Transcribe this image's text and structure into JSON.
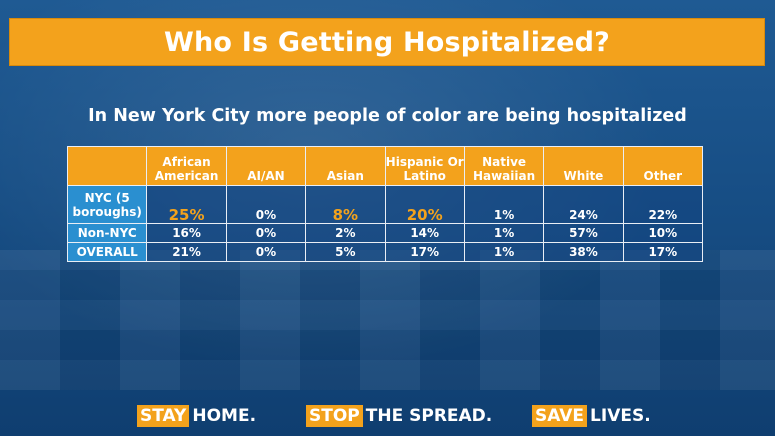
{
  "title": "Who Is Getting Hospitalized?",
  "subtitle": "In New York City more people of color are being hospitalized",
  "chart_data": {
    "type": "table",
    "columns": [
      "African American",
      "AI/AN",
      "Asian",
      "Hispanic Or Latino",
      "Native Hawaiian",
      "White",
      "Other"
    ],
    "rows": [
      {
        "label": "NYC (5 boroughs)",
        "values": [
          "25%",
          "0%",
          "8%",
          "20%",
          "1%",
          "24%",
          "22%"
        ]
      },
      {
        "label": "Non-NYC",
        "values": [
          "16%",
          "0%",
          "2%",
          "14%",
          "1%",
          "57%",
          "10%"
        ]
      },
      {
        "label": "OVERALL",
        "values": [
          "21%",
          "0%",
          "5%",
          "17%",
          "1%",
          "38%",
          "17%"
        ]
      }
    ],
    "highlight_color": "#f3a21c",
    "highlighted_cells": [
      "NYC (5 boroughs)|African American",
      "NYC (5 boroughs)|Asian",
      "NYC (5 boroughs)|Hispanic Or Latino"
    ]
  },
  "footer": [
    {
      "key": "STAY",
      "rest": "HOME."
    },
    {
      "key": "STOP",
      "rest": "THE SPREAD."
    },
    {
      "key": "SAVE",
      "rest": "LIVES."
    }
  ],
  "colors": {
    "accent": "#f3a21c",
    "background": "#174e85",
    "row_header": "#2a8fd0"
  }
}
